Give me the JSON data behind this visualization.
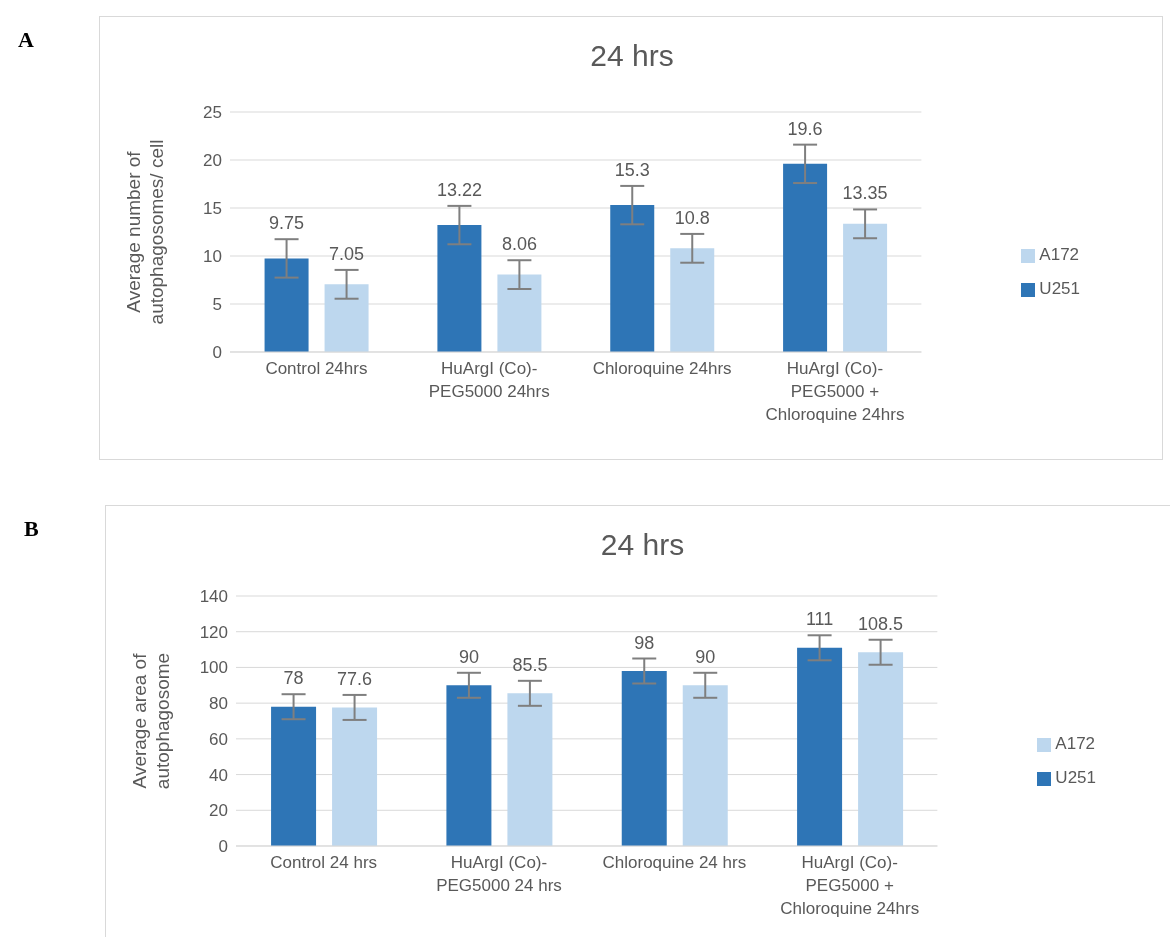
{
  "chart_data": [
    {
      "type": "bar",
      "title": "24 hrs",
      "ylabel": "Average number of autophagosomes/ cell",
      "annotations": [
        "A"
      ],
      "categories": [
        "Control 24hrs",
        "HuArgI (Co)-PEG5000 24hrs",
        "Chloroquine 24hrs",
        "HuArgI (Co)-PEG5000 + Chloroquine 24hrs"
      ],
      "series": [
        {
          "name": "U251",
          "color": "#2e75b6",
          "values": [
            9.75,
            13.22,
            15.3,
            19.6
          ],
          "errors": [
            2,
            2,
            2,
            2
          ]
        },
        {
          "name": "A172",
          "color": "#bdd7ee",
          "values": [
            7.05,
            8.06,
            10.8,
            13.35
          ],
          "errors": [
            1.5,
            1.5,
            1.5,
            1.5
          ]
        }
      ],
      "ylim": [
        0,
        25
      ],
      "yticks": [
        0,
        5,
        10,
        15,
        20,
        25
      ],
      "grid": "y",
      "legend": "right",
      "data_labels": true
    },
    {
      "type": "bar",
      "title": "24 hrs",
      "ylabel": "Average area of autophagosome",
      "annotations": [
        "B"
      ],
      "categories": [
        "Control 24 hrs",
        "HuArgI (Co)-PEG5000 24 hrs",
        "Chloroquine 24 hrs",
        "HuArgI (Co)-PEG5000 + Chloroquine 24hrs"
      ],
      "series": [
        {
          "name": "U251",
          "color": "#2e75b6",
          "values": [
            78,
            90,
            98,
            111
          ],
          "errors": [
            7,
            7,
            7,
            7
          ]
        },
        {
          "name": "A172",
          "color": "#bdd7ee",
          "values": [
            77.6,
            85.5,
            90,
            108.5
          ],
          "errors": [
            7,
            7,
            7,
            7
          ]
        }
      ],
      "ylim": [
        0,
        140
      ],
      "yticks": [
        0,
        20,
        40,
        60,
        80,
        100,
        120,
        140
      ],
      "grid": "y",
      "legend": "right",
      "data_labels": true
    }
  ]
}
